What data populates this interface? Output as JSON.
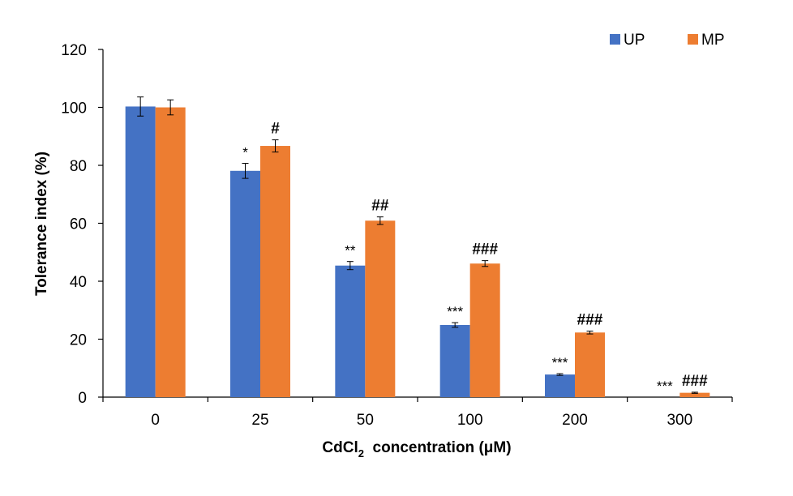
{
  "chart_data": {
    "type": "bar",
    "categories": [
      "0",
      "25",
      "50",
      "100",
      "200",
      "300"
    ],
    "xlabel_parts": {
      "before": "CdCl",
      "sub": "2",
      "after": "  concentration (μM)"
    },
    "ylabel": "Tolerance index (%)",
    "ylim": [
      0,
      120
    ],
    "yticks": [
      "0",
      "20",
      "40",
      "60",
      "80",
      "100",
      "120"
    ],
    "ytick_values": [
      0,
      20,
      40,
      60,
      80,
      100,
      120
    ],
    "legend_position": "top-right",
    "grid": false,
    "series": [
      {
        "name": "UP",
        "color": "#4472C4",
        "values": [
          100.3,
          78.1,
          45.4,
          24.9,
          7.8,
          0
        ],
        "errors": [
          3.3,
          2.6,
          1.4,
          0.8,
          0.3,
          0
        ],
        "annotations": [
          "",
          "*",
          "**",
          "***",
          "***",
          "***"
        ]
      },
      {
        "name": "MP",
        "color": "#ED7D31",
        "values": [
          100.0,
          86.7,
          60.9,
          46.1,
          22.3,
          1.5
        ],
        "errors": [
          2.6,
          2.1,
          1.3,
          1.0,
          0.5,
          0.2
        ],
        "annotations": [
          "",
          "#",
          "##",
          "###",
          "###",
          "###"
        ]
      }
    ]
  }
}
